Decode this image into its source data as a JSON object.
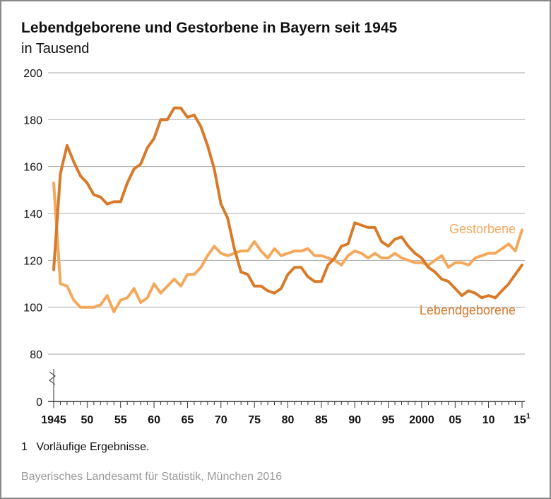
{
  "title": "Lebendgeborene und Gestorbene in Bayern seit 1945",
  "subtitle": "in Tausend",
  "footnote": {
    "marker": "1",
    "text": "Vorläufige Ergebnisse."
  },
  "source": "Bayerisches Landesamt für Statistik, München 2016",
  "colors": {
    "geborene": "#d77a2a",
    "gestorbene": "#f3a85c",
    "grid": "#a8a8a8",
    "axis": "#333333"
  },
  "chart_data": {
    "type": "line",
    "title": "Lebendgeborene und Gestorbene in Bayern seit 1945",
    "ylabel": "in Tausend",
    "xlabel": "",
    "xlim": [
      1945,
      2015
    ],
    "ylim": [
      0,
      200
    ],
    "axis_break": [
      0,
      80
    ],
    "yticks": [
      0,
      80,
      100,
      120,
      140,
      160,
      180,
      200
    ],
    "ytick_labels": [
      "0",
      "80",
      "100",
      "120",
      "140",
      "160",
      "180",
      "200"
    ],
    "xticks": [
      {
        "value": 1945,
        "label": "1945"
      },
      {
        "value": 1950,
        "label": "50"
      },
      {
        "value": 1955,
        "label": "55"
      },
      {
        "value": 1960,
        "label": "60"
      },
      {
        "value": 1965,
        "label": "65"
      },
      {
        "value": 1970,
        "label": "70"
      },
      {
        "value": 1975,
        "label": "75"
      },
      {
        "value": 1980,
        "label": "80"
      },
      {
        "value": 1985,
        "label": "85"
      },
      {
        "value": 1990,
        "label": "90"
      },
      {
        "value": 1995,
        "label": "95"
      },
      {
        "value": 2000,
        "label": "2000"
      },
      {
        "value": 2005,
        "label": "05"
      },
      {
        "value": 2010,
        "label": "10"
      },
      {
        "value": 2015,
        "label": "15",
        "sup": "1"
      }
    ],
    "x": [
      1945,
      1946,
      1947,
      1948,
      1949,
      1950,
      1951,
      1952,
      1953,
      1954,
      1955,
      1956,
      1957,
      1958,
      1959,
      1960,
      1961,
      1962,
      1963,
      1964,
      1965,
      1966,
      1967,
      1968,
      1969,
      1970,
      1971,
      1972,
      1973,
      1974,
      1975,
      1976,
      1977,
      1978,
      1979,
      1980,
      1981,
      1982,
      1983,
      1984,
      1985,
      1986,
      1987,
      1988,
      1989,
      1990,
      1991,
      1992,
      1993,
      1994,
      1995,
      1996,
      1997,
      1998,
      1999,
      2000,
      2001,
      2002,
      2003,
      2004,
      2005,
      2006,
      2007,
      2008,
      2009,
      2010,
      2011,
      2012,
      2013,
      2014,
      2015
    ],
    "series": [
      {
        "name": "Lebendgeborene",
        "values": [
          116,
          157,
          169,
          162,
          156,
          153,
          148,
          147,
          144,
          145,
          145,
          153,
          159,
          161,
          168,
          172,
          180,
          180,
          185,
          185,
          181,
          182,
          177,
          169,
          159,
          144,
          138,
          125,
          115,
          114,
          109,
          109,
          107,
          106,
          108,
          114,
          117,
          117,
          113,
          111,
          111,
          118,
          121,
          126,
          127,
          136,
          135,
          134,
          134,
          128,
          126,
          129,
          130,
          126,
          123,
          121,
          117,
          115,
          112,
          111,
          108,
          105,
          107,
          106,
          104,
          105,
          104,
          107,
          110,
          114,
          118
        ]
      },
      {
        "name": "Gestorbene",
        "values": [
          153,
          110,
          109,
          103,
          100,
          100,
          100,
          101,
          105,
          98,
          103,
          104,
          108,
          102,
          104,
          110,
          106,
          109,
          112,
          109,
          114,
          114,
          117,
          122,
          126,
          123,
          122,
          123,
          124,
          124,
          128,
          124,
          121,
          125,
          122,
          123,
          124,
          124,
          125,
          122,
          122,
          121,
          120,
          118,
          122,
          124,
          123,
          121,
          123,
          121,
          121,
          123,
          121,
          120,
          119,
          119,
          118,
          120,
          122,
          117,
          119,
          119,
          118,
          121,
          122,
          123,
          123,
          125,
          127,
          124,
          133
        ]
      }
    ],
    "legend": [
      {
        "series": "Gestorbene",
        "label": "Gestorbene",
        "placement": "right, above line"
      },
      {
        "series": "Lebendgeborene",
        "label": "Lebendgeborene",
        "placement": "right, below line"
      }
    ]
  }
}
